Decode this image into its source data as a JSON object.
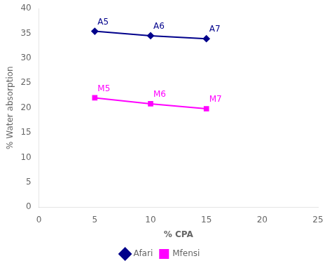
{
  "chart_data": {
    "type": "line",
    "ylabel": "% Water absorption",
    "xlabel": "% CPA",
    "x": [
      5,
      10,
      15
    ],
    "series": [
      {
        "name": "Afari",
        "color": "#00008B",
        "marker": "diamond",
        "values": [
          35.4,
          34.5,
          33.9
        ],
        "point_labels": [
          "A5",
          "A6",
          "A7"
        ]
      },
      {
        "name": "Mfensi",
        "color": "#FF00FF",
        "marker": "square",
        "values": [
          22.0,
          20.8,
          19.8
        ],
        "point_labels": [
          "M5",
          "M6",
          "M7"
        ]
      }
    ],
    "xlim": [
      0,
      25
    ],
    "ylim": [
      0,
      40
    ],
    "xticks": [
      0,
      5,
      10,
      15,
      20,
      25
    ],
    "yticks": [
      0,
      5,
      10,
      15,
      20,
      25,
      30,
      35,
      40
    ],
    "grid": false,
    "legend": "bottom"
  }
}
